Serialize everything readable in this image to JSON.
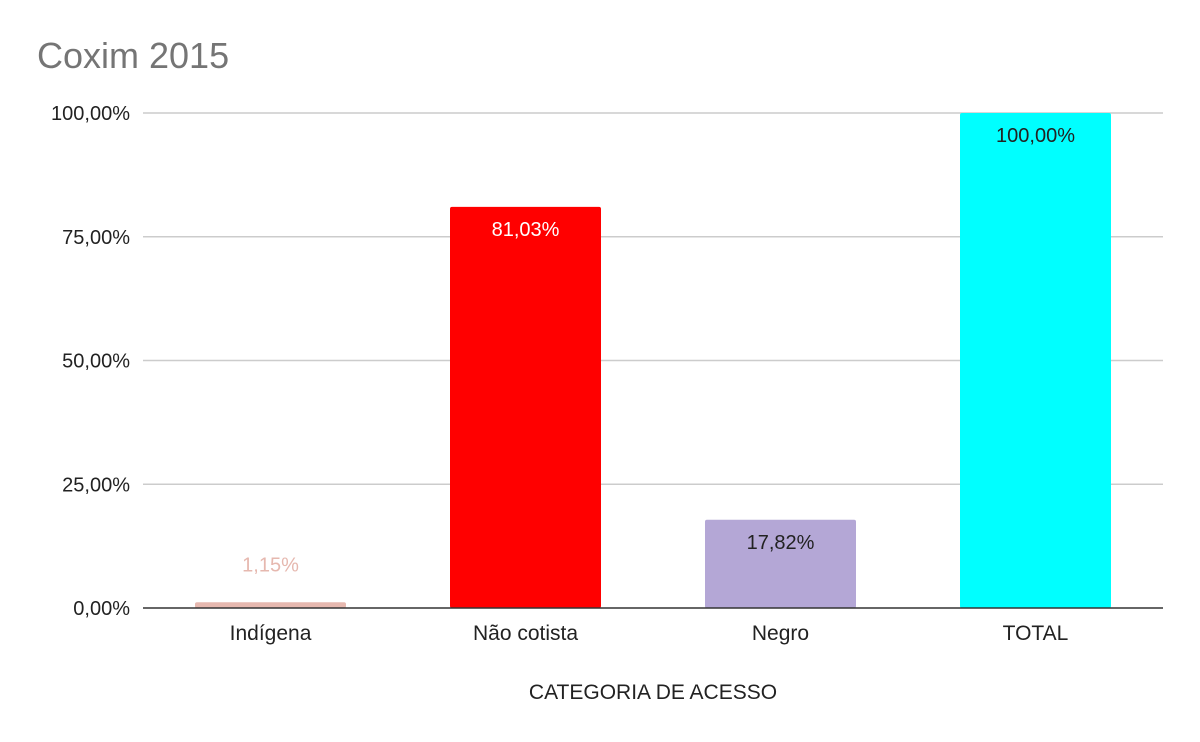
{
  "chart_data": {
    "type": "bar",
    "title": "Coxim 2015",
    "xlabel": "CATEGORIA DE ACESSO",
    "ylabel": "",
    "ylim": [
      0,
      100
    ],
    "yticks": [
      {
        "value": 0,
        "label": "0,00%"
      },
      {
        "value": 25,
        "label": "25,00%"
      },
      {
        "value": 50,
        "label": "50,00%"
      },
      {
        "value": 75,
        "label": "75,00%"
      },
      {
        "value": 100,
        "label": "100,00%"
      }
    ],
    "grid": true,
    "legend": "none",
    "categories": [
      "Indígena",
      "Não cotista",
      "Negro",
      "TOTAL"
    ],
    "values": [
      1.15,
      81.03,
      17.82,
      100.0
    ],
    "data_labels": [
      "1,15%",
      "81,03%",
      "17,82%",
      "100,00%"
    ],
    "colors": [
      "#e6b8af",
      "#ff0000",
      "#b4a7d6",
      "#00ffff"
    ],
    "label_colors": [
      "#e6b8af",
      "#ffffff",
      "#222222",
      "#222222"
    ]
  }
}
